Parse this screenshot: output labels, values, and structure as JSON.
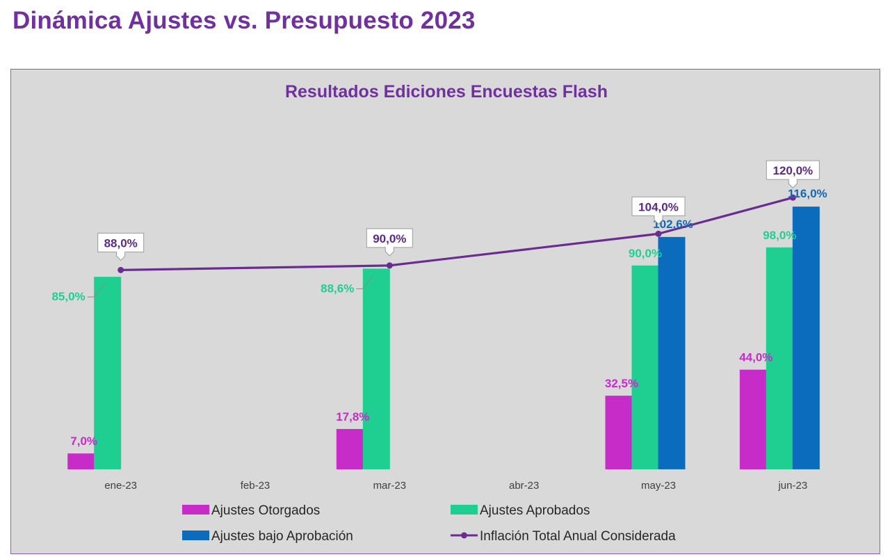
{
  "page": {
    "title": "Dinámica Ajustes vs. Presupuesto 2023"
  },
  "chart_data": {
    "type": "bar",
    "title": "Resultados Ediciones Encuestas Flash",
    "categories": [
      "ene-23",
      "feb-23",
      "mar-23",
      "abr-23",
      "may-23",
      "jun-23"
    ],
    "ylim": [
      0,
      140
    ],
    "grid": false,
    "legend_placement": "bottom",
    "series": [
      {
        "name": "Ajustes Otorgados",
        "type": "bar",
        "color": "#c72cc9",
        "values": [
          7.0,
          null,
          17.8,
          null,
          32.5,
          44.0
        ],
        "labels": [
          "7,0%",
          "",
          "17,8%",
          "",
          "32,5%",
          "44,0%"
        ]
      },
      {
        "name": "Ajustes Aprobados",
        "type": "bar",
        "color": "#1fcf92",
        "values": [
          85.0,
          null,
          88.6,
          null,
          90.0,
          98.0
        ],
        "labels": [
          "85,0%",
          "",
          "88,6%",
          "",
          "90,0%",
          "98,0%"
        ]
      },
      {
        "name": "Ajustes bajo Aprobación",
        "type": "bar",
        "color": "#0b6bbd",
        "values": [
          null,
          null,
          null,
          null,
          102.6,
          116.0
        ],
        "labels": [
          "",
          "",
          "",
          "",
          "102,6%",
          "116,0%"
        ]
      },
      {
        "name": "Inflación Total Anual Considerada",
        "type": "line",
        "color": "#6a2c91",
        "values": [
          88.0,
          null,
          90.0,
          null,
          104.0,
          120.0
        ],
        "labels": [
          "88,0%",
          "",
          "90,0%",
          "",
          "104,0%",
          "120,0%"
        ]
      }
    ]
  }
}
